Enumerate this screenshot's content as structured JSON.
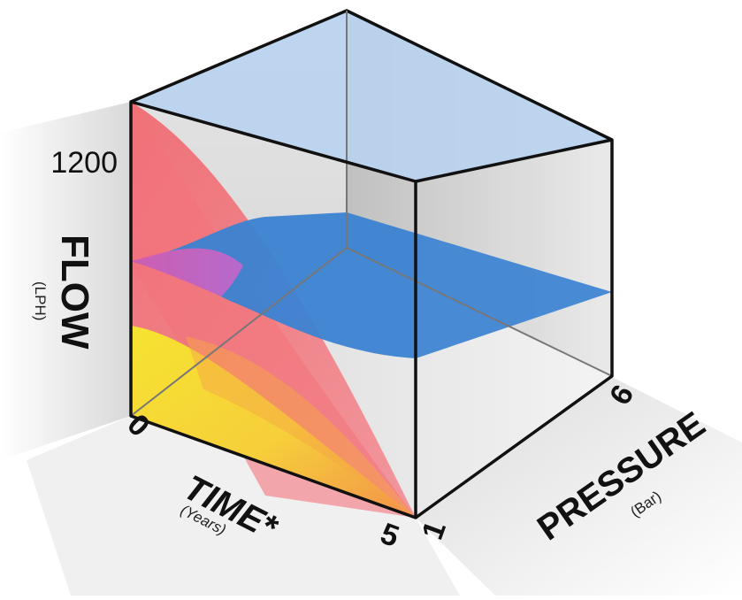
{
  "axes": {
    "flow": {
      "label": "FLOW",
      "unit": "(LPH)",
      "tick_min": "0",
      "tick_max": "1200"
    },
    "time": {
      "label": "TIME*",
      "unit": "(Years)",
      "tick_min": "0",
      "tick_max": "5"
    },
    "pressure": {
      "label": "PRESSURE",
      "unit": "(Bar)",
      "tick_min": "1",
      "tick_max": "6"
    }
  },
  "colors": {
    "top_plane": "#b9d3ef",
    "middle_plane": "#2f7bd0",
    "red_surface": "#f04a55",
    "yellow_surface": "#f5ee1a",
    "orange_surface": "#f6a23a",
    "box_edge": "#111111"
  }
}
